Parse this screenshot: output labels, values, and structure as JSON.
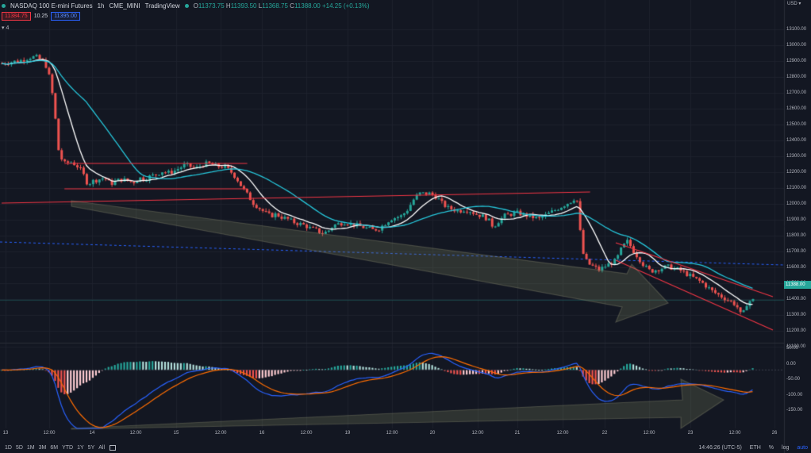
{
  "header": {
    "symbol": "NASDAQ 100 E-mini Futures",
    "interval": "1h",
    "exchange": "CME_MINI",
    "source": "TradingView",
    "o_label": "O",
    "o_val": "11373.75",
    "h_label": "H",
    "h_val": "11393.50",
    "l_label": "L",
    "l_val": "11368.75",
    "c_label": "C",
    "c_val": "11388.00",
    "change": "+14.25 (+0.13%)"
  },
  "trade": {
    "bid": "11384.75",
    "spread": "10.25",
    "ask": "11395.00"
  },
  "indicator_toggle": "▾ 4",
  "price_axis": {
    "currency": "USD ▾",
    "labels": [
      "13100.00",
      "13000.00",
      "12900.00",
      "12800.00",
      "12700.00",
      "12600.00",
      "12500.00",
      "12400.00",
      "12300.00",
      "12200.00",
      "12100.00",
      "12000.00",
      "11900.00",
      "11800.00",
      "11700.00",
      "11600.00",
      "11500.00",
      "11400.00",
      "11300.00",
      "11200.00",
      "11100.00"
    ],
    "current": "11388.00"
  },
  "macd_axis": {
    "labels": [
      "50.00",
      "0.00",
      "-50.00",
      "-100.00",
      "-150.00"
    ]
  },
  "time_axis": {
    "labels": [
      "13",
      "12:00",
      "14",
      "12:00",
      "15",
      "12:00",
      "16",
      "12:00",
      "19",
      "12:00",
      "20",
      "12:00",
      "21",
      "12:00",
      "22",
      "12:00",
      "23",
      "12:00",
      "26"
    ]
  },
  "bottom_bar": {
    "ranges": [
      "1D",
      "5D",
      "1M",
      "3M",
      "6M",
      "YTD",
      "1Y",
      "5Y",
      "All"
    ],
    "time": "14:46:26 (UTC-5)",
    "session": "ETH",
    "pct": "%",
    "log": "log",
    "auto": "auto"
  },
  "colors": {
    "bg": "#131722",
    "up": "#26a69a",
    "down": "#ef5350",
    "ma_fast": "#ffffff",
    "ma_slow": "#26c6da",
    "macd": "#2962ff",
    "signal": "#ff6d00",
    "trendline": "#f23645"
  },
  "chart_data": {
    "type": "candlestick",
    "price_axis_range": [
      11100,
      13100
    ],
    "close_path": [
      [
        0,
        12880
      ],
      [
        14,
        12900
      ],
      [
        20,
        12920
      ],
      [
        24,
        12920
      ],
      [
        28,
        12900
      ],
      [
        32,
        12850
      ],
      [
        36,
        12650
      ],
      [
        40,
        12300
      ],
      [
        44,
        12250
      ],
      [
        48,
        12260
      ],
      [
        52,
        12240
      ],
      [
        56,
        12200
      ],
      [
        60,
        12120
      ],
      [
        64,
        12140
      ],
      [
        68,
        12150
      ],
      [
        72,
        12160
      ],
      [
        76,
        12120
      ],
      [
        80,
        12140
      ],
      [
        84,
        12150
      ],
      [
        88,
        12140
      ],
      [
        92,
        12130
      ],
      [
        96,
        12160
      ],
      [
        100,
        12150
      ],
      [
        104,
        12170
      ],
      [
        108,
        12180
      ],
      [
        112,
        12200
      ],
      [
        116,
        12190
      ],
      [
        120,
        12200
      ],
      [
        124,
        12220
      ],
      [
        128,
        12240
      ],
      [
        132,
        12230
      ],
      [
        136,
        12220
      ],
      [
        140,
        12240
      ],
      [
        144,
        12250
      ],
      [
        148,
        12240
      ],
      [
        152,
        12230
      ],
      [
        156,
        12230
      ],
      [
        160,
        12200
      ],
      [
        164,
        12160
      ],
      [
        168,
        12100
      ],
      [
        172,
        12050
      ],
      [
        176,
        12000
      ],
      [
        180,
        11970
      ],
      [
        184,
        11940
      ],
      [
        188,
        11920
      ],
      [
        192,
        11930
      ],
      [
        196,
        11910
      ],
      [
        200,
        11900
      ],
      [
        204,
        11880
      ],
      [
        208,
        11870
      ],
      [
        212,
        11860
      ],
      [
        216,
        11840
      ],
      [
        220,
        11830
      ],
      [
        224,
        11810
      ],
      [
        228,
        11820
      ],
      [
        232,
        11860
      ],
      [
        236,
        11870
      ],
      [
        240,
        11880
      ],
      [
        244,
        11870
      ],
      [
        248,
        11860
      ],
      [
        252,
        11850
      ],
      [
        256,
        11840
      ],
      [
        260,
        11830
      ],
      [
        264,
        11840
      ],
      [
        268,
        11870
      ],
      [
        272,
        11900
      ],
      [
        276,
        11910
      ],
      [
        280,
        11920
      ],
      [
        284,
        11960
      ],
      [
        288,
        12020
      ],
      [
        292,
        12060
      ],
      [
        296,
        12060
      ],
      [
        300,
        12060
      ],
      [
        304,
        12040
      ],
      [
        308,
        12000
      ],
      [
        312,
        11970
      ],
      [
        316,
        11960
      ],
      [
        320,
        11950
      ],
      [
        324,
        11960
      ],
      [
        328,
        11950
      ],
      [
        332,
        11930
      ],
      [
        336,
        11920
      ],
      [
        340,
        11900
      ],
      [
        344,
        11850
      ],
      [
        348,
        11890
      ],
      [
        352,
        11920
      ],
      [
        356,
        11930
      ],
      [
        360,
        11940
      ],
      [
        364,
        11930
      ],
      [
        368,
        11920
      ],
      [
        372,
        11910
      ],
      [
        376,
        11900
      ],
      [
        380,
        11920
      ],
      [
        384,
        11940
      ],
      [
        388,
        11960
      ],
      [
        392,
        11980
      ],
      [
        396,
        12000
      ],
      [
        400,
        12020
      ],
      [
        402,
        12060
      ],
      [
        404,
        11900
      ],
      [
        406,
        11700
      ],
      [
        410,
        11620
      ],
      [
        414,
        11600
      ],
      [
        418,
        11580
      ],
      [
        422,
        11600
      ],
      [
        426,
        11620
      ],
      [
        430,
        11640
      ],
      [
        434,
        11720
      ],
      [
        438,
        11760
      ],
      [
        442,
        11700
      ],
      [
        446,
        11650
      ],
      [
        450,
        11600
      ],
      [
        454,
        11570
      ],
      [
        458,
        11580
      ],
      [
        462,
        11590
      ],
      [
        466,
        11600
      ],
      [
        470,
        11590
      ],
      [
        474,
        11580
      ],
      [
        478,
        11560
      ],
      [
        482,
        11540
      ],
      [
        486,
        11520
      ],
      [
        490,
        11500
      ],
      [
        494,
        11470
      ],
      [
        498,
        11440
      ],
      [
        502,
        11420
      ],
      [
        506,
        11400
      ],
      [
        510,
        11380
      ],
      [
        514,
        11360
      ],
      [
        518,
        11280
      ],
      [
        522,
        11380
      ],
      [
        526,
        11388
      ]
    ],
    "trendlines": [
      {
        "from": [
          0,
          12000
        ],
        "to": [
          412,
          12070
        ]
      },
      {
        "from": [
          44,
          12250
        ],
        "to": [
          172,
          12250
        ]
      },
      {
        "from": [
          44,
          12090
        ],
        "to": [
          172,
          12090
        ]
      },
      {
        "from": [
          430,
          11750
        ],
        "to": [
          540,
          11410
        ]
      },
      {
        "from": [
          430,
          11640
        ],
        "to": [
          540,
          11200
        ]
      }
    ],
    "macd_axis_range": [
      -170,
      70
    ]
  }
}
